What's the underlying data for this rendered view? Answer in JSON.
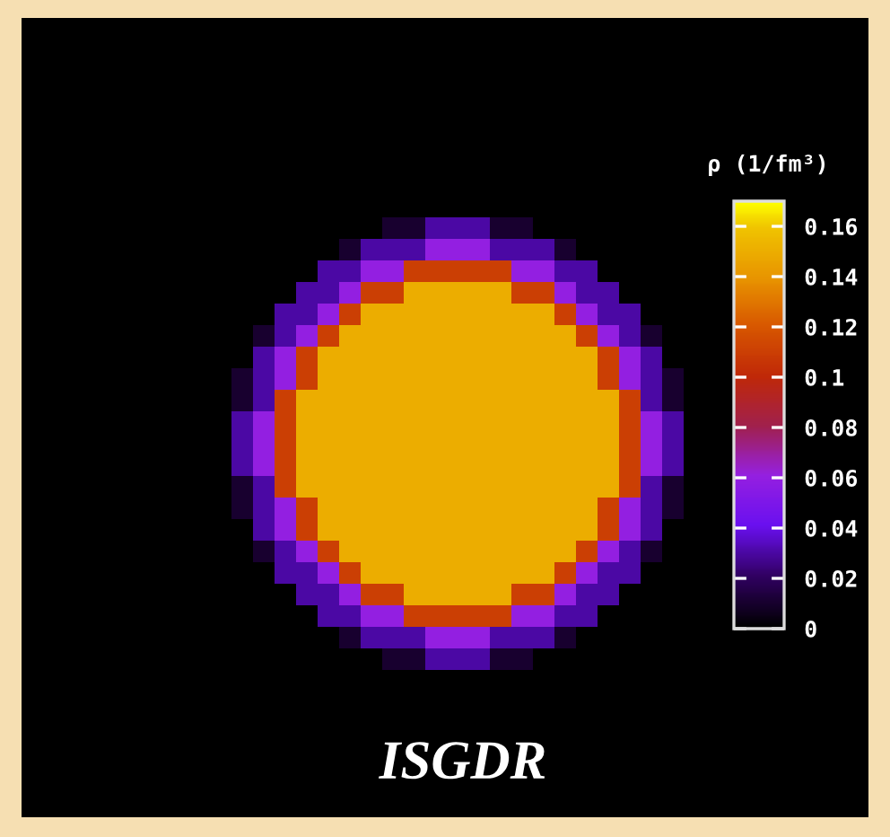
{
  "chart_data": {
    "type": "heatmap",
    "title": "ISGDR",
    "clabel": "ρ (1/fm³)",
    "categories": [
      null,
      null,
      null,
      null,
      null,
      null,
      null,
      null,
      null,
      null,
      null,
      null,
      null,
      null,
      null,
      null,
      null,
      null,
      null,
      null,
      null
    ],
    "y_categories": [
      null,
      null,
      null,
      null,
      null,
      null,
      null,
      null,
      null,
      null,
      null,
      null,
      null,
      null,
      null,
      null,
      null,
      null,
      null,
      null,
      null
    ],
    "clim": [
      0,
      0.17
    ],
    "cticks": [
      0,
      0.02,
      0.04,
      0.06,
      0.08,
      0.1,
      0.12,
      0.14,
      0.16
    ],
    "cells": [
      [
        0,
        0,
        0,
        0,
        0,
        0,
        0,
        0.01,
        0.01,
        0.03,
        0.03,
        0.03,
        0.01,
        0.01,
        0,
        0,
        0,
        0,
        0,
        0,
        0
      ],
      [
        0,
        0,
        0,
        0,
        0,
        0.01,
        0.03,
        0.03,
        0.03,
        0.06,
        0.06,
        0.06,
        0.03,
        0.03,
        0.03,
        0.01,
        0,
        0,
        0,
        0,
        0
      ],
      [
        0,
        0,
        0,
        0,
        0.03,
        0.03,
        0.06,
        0.06,
        0.11,
        0.11,
        0.11,
        0.11,
        0.11,
        0.06,
        0.06,
        0.03,
        0.03,
        0,
        0,
        0,
        0
      ],
      [
        0,
        0,
        0,
        0.03,
        0.03,
        0.06,
        0.11,
        0.11,
        0.15,
        0.15,
        0.15,
        0.15,
        0.15,
        0.11,
        0.11,
        0.06,
        0.03,
        0.03,
        0,
        0,
        0
      ],
      [
        0,
        0,
        0.03,
        0.03,
        0.06,
        0.11,
        0.15,
        0.15,
        0.15,
        0.15,
        0.15,
        0.15,
        0.15,
        0.15,
        0.15,
        0.11,
        0.06,
        0.03,
        0.03,
        0,
        0
      ],
      [
        0,
        0.01,
        0.03,
        0.06,
        0.11,
        0.15,
        0.15,
        0.15,
        0.15,
        0.15,
        0.15,
        0.15,
        0.15,
        0.15,
        0.15,
        0.15,
        0.11,
        0.06,
        0.03,
        0.01,
        0
      ],
      [
        0,
        0.03,
        0.06,
        0.11,
        0.15,
        0.15,
        0.15,
        0.15,
        0.15,
        0.15,
        0.15,
        0.15,
        0.15,
        0.15,
        0.15,
        0.15,
        0.15,
        0.11,
        0.06,
        0.03,
        0
      ],
      [
        0.01,
        0.03,
        0.06,
        0.11,
        0.15,
        0.15,
        0.15,
        0.15,
        0.15,
        0.15,
        0.15,
        0.15,
        0.15,
        0.15,
        0.15,
        0.15,
        0.15,
        0.11,
        0.06,
        0.03,
        0.01
      ],
      [
        0.01,
        0.03,
        0.11,
        0.15,
        0.15,
        0.15,
        0.15,
        0.15,
        0.15,
        0.15,
        0.15,
        0.15,
        0.15,
        0.15,
        0.15,
        0.15,
        0.15,
        0.15,
        0.11,
        0.03,
        0.01
      ],
      [
        0.03,
        0.06,
        0.11,
        0.15,
        0.15,
        0.15,
        0.15,
        0.15,
        0.15,
        0.15,
        0.15,
        0.15,
        0.15,
        0.15,
        0.15,
        0.15,
        0.15,
        0.15,
        0.11,
        0.06,
        0.03
      ],
      [
        0.03,
        0.06,
        0.11,
        0.15,
        0.15,
        0.15,
        0.15,
        0.15,
        0.15,
        0.15,
        0.15,
        0.15,
        0.15,
        0.15,
        0.15,
        0.15,
        0.15,
        0.15,
        0.11,
        0.06,
        0.03
      ],
      [
        0.03,
        0.06,
        0.11,
        0.15,
        0.15,
        0.15,
        0.15,
        0.15,
        0.15,
        0.15,
        0.15,
        0.15,
        0.15,
        0.15,
        0.15,
        0.15,
        0.15,
        0.15,
        0.11,
        0.06,
        0.03
      ],
      [
        0.01,
        0.03,
        0.11,
        0.15,
        0.15,
        0.15,
        0.15,
        0.15,
        0.15,
        0.15,
        0.15,
        0.15,
        0.15,
        0.15,
        0.15,
        0.15,
        0.15,
        0.15,
        0.11,
        0.03,
        0.01
      ],
      [
        0.01,
        0.03,
        0.06,
        0.11,
        0.15,
        0.15,
        0.15,
        0.15,
        0.15,
        0.15,
        0.15,
        0.15,
        0.15,
        0.15,
        0.15,
        0.15,
        0.15,
        0.11,
        0.06,
        0.03,
        0.01
      ],
      [
        0,
        0.03,
        0.06,
        0.11,
        0.15,
        0.15,
        0.15,
        0.15,
        0.15,
        0.15,
        0.15,
        0.15,
        0.15,
        0.15,
        0.15,
        0.15,
        0.15,
        0.11,
        0.06,
        0.03,
        0
      ],
      [
        0,
        0.01,
        0.03,
        0.06,
        0.11,
        0.15,
        0.15,
        0.15,
        0.15,
        0.15,
        0.15,
        0.15,
        0.15,
        0.15,
        0.15,
        0.15,
        0.11,
        0.06,
        0.03,
        0.01,
        0
      ],
      [
        0,
        0,
        0.03,
        0.03,
        0.06,
        0.11,
        0.15,
        0.15,
        0.15,
        0.15,
        0.15,
        0.15,
        0.15,
        0.15,
        0.15,
        0.11,
        0.06,
        0.03,
        0.03,
        0,
        0
      ],
      [
        0,
        0,
        0,
        0.03,
        0.03,
        0.06,
        0.11,
        0.11,
        0.15,
        0.15,
        0.15,
        0.15,
        0.15,
        0.11,
        0.11,
        0.06,
        0.03,
        0.03,
        0,
        0,
        0
      ],
      [
        0,
        0,
        0,
        0,
        0.03,
        0.03,
        0.06,
        0.06,
        0.11,
        0.11,
        0.11,
        0.11,
        0.11,
        0.06,
        0.06,
        0.03,
        0.03,
        0,
        0,
        0,
        0
      ],
      [
        0,
        0,
        0,
        0,
        0,
        0.01,
        0.03,
        0.03,
        0.03,
        0.06,
        0.06,
        0.06,
        0.03,
        0.03,
        0.03,
        0.01,
        0,
        0,
        0,
        0,
        0
      ],
      [
        0,
        0,
        0,
        0,
        0,
        0,
        0,
        0.01,
        0.01,
        0.03,
        0.03,
        0.03,
        0.01,
        0.01,
        0,
        0,
        0,
        0,
        0,
        0,
        0
      ]
    ]
  }
}
